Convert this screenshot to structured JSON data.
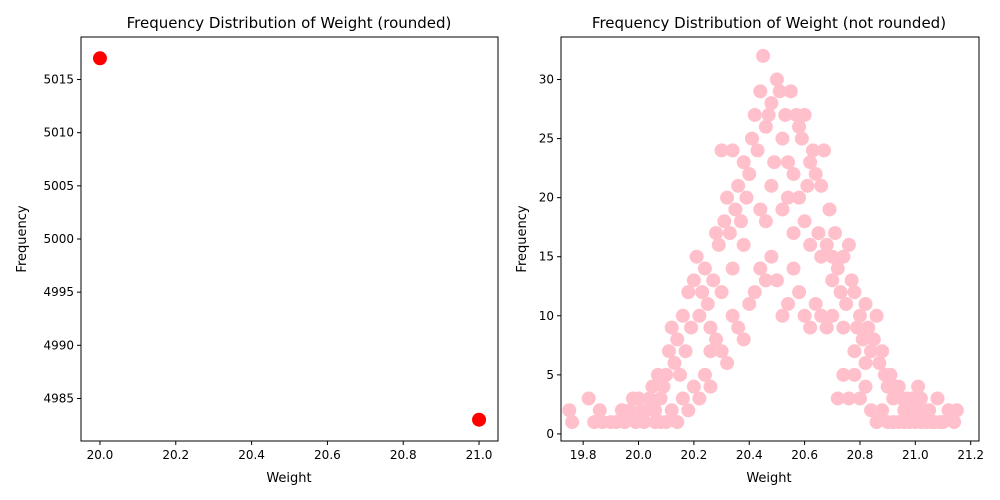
{
  "chart_data": [
    {
      "type": "scatter",
      "title": "Frequency Distribution of Weight (rounded)",
      "xlabel": "Weight",
      "ylabel": "Frequency",
      "xlim": [
        19.95,
        21.05
      ],
      "ylim": [
        4981,
        5019
      ],
      "xticks": [
        20.0,
        20.2,
        20.4,
        20.6,
        20.8,
        21.0
      ],
      "xtick_labels": [
        "20.0",
        "20.2",
        "20.4",
        "20.6",
        "20.8",
        "21.0"
      ],
      "yticks": [
        4985,
        4990,
        4995,
        5000,
        5005,
        5010,
        5015
      ],
      "ytick_labels": [
        "4985",
        "4990",
        "4995",
        "5000",
        "5005",
        "5010",
        "5015"
      ],
      "grid": false,
      "color": "#ff0000",
      "points": [
        {
          "x": 20.0,
          "y": 5017
        },
        {
          "x": 21.0,
          "y": 4983
        }
      ]
    },
    {
      "type": "scatter",
      "title": "Frequency Distribution of Weight (not rounded)",
      "xlabel": "Weight",
      "ylabel": "Frequency",
      "xlim": [
        19.72,
        21.23
      ],
      "ylim": [
        -0.6,
        33.6
      ],
      "xticks": [
        19.8,
        20.0,
        20.2,
        20.4,
        20.6,
        20.8,
        21.0,
        21.2
      ],
      "xtick_labels": [
        "19.8",
        "20.0",
        "20.2",
        "20.4",
        "20.6",
        "20.8",
        "21.0",
        "21.2"
      ],
      "yticks": [
        0,
        5,
        10,
        15,
        20,
        25,
        30
      ],
      "ytick_labels": [
        "0",
        "5",
        "10",
        "15",
        "20",
        "25",
        "30"
      ],
      "grid": false,
      "color": "#ffc0cb",
      "points": [
        {
          "x": 19.75,
          "y": 2
        },
        {
          "x": 19.76,
          "y": 1
        },
        {
          "x": 19.82,
          "y": 3
        },
        {
          "x": 19.84,
          "y": 1
        },
        {
          "x": 19.86,
          "y": 2
        },
        {
          "x": 19.87,
          "y": 1
        },
        {
          "x": 19.9,
          "y": 1
        },
        {
          "x": 19.92,
          "y": 1
        },
        {
          "x": 19.94,
          "y": 2
        },
        {
          "x": 19.95,
          "y": 1
        },
        {
          "x": 19.97,
          "y": 2
        },
        {
          "x": 19.98,
          "y": 3
        },
        {
          "x": 19.99,
          "y": 1
        },
        {
          "x": 20.0,
          "y": 3
        },
        {
          "x": 20.01,
          "y": 2
        },
        {
          "x": 20.02,
          "y": 1
        },
        {
          "x": 20.03,
          "y": 2
        },
        {
          "x": 20.04,
          "y": 3
        },
        {
          "x": 20.05,
          "y": 4
        },
        {
          "x": 20.06,
          "y": 2
        },
        {
          "x": 20.07,
          "y": 5
        },
        {
          "x": 20.08,
          "y": 3
        },
        {
          "x": 20.09,
          "y": 4
        },
        {
          "x": 20.1,
          "y": 5
        },
        {
          "x": 20.11,
          "y": 7
        },
        {
          "x": 20.12,
          "y": 9
        },
        {
          "x": 20.13,
          "y": 6
        },
        {
          "x": 20.14,
          "y": 8
        },
        {
          "x": 20.15,
          "y": 5
        },
        {
          "x": 20.16,
          "y": 10
        },
        {
          "x": 20.17,
          "y": 7
        },
        {
          "x": 20.18,
          "y": 12
        },
        {
          "x": 20.19,
          "y": 9
        },
        {
          "x": 20.2,
          "y": 13
        },
        {
          "x": 20.21,
          "y": 15
        },
        {
          "x": 20.22,
          "y": 10
        },
        {
          "x": 20.23,
          "y": 12
        },
        {
          "x": 20.24,
          "y": 14
        },
        {
          "x": 20.25,
          "y": 11
        },
        {
          "x": 20.26,
          "y": 9
        },
        {
          "x": 20.27,
          "y": 13
        },
        {
          "x": 20.28,
          "y": 17
        },
        {
          "x": 20.29,
          "y": 16
        },
        {
          "x": 20.3,
          "y": 24
        },
        {
          "x": 20.31,
          "y": 18
        },
        {
          "x": 20.32,
          "y": 20
        },
        {
          "x": 20.33,
          "y": 17
        },
        {
          "x": 20.34,
          "y": 24
        },
        {
          "x": 20.35,
          "y": 19
        },
        {
          "x": 20.36,
          "y": 21
        },
        {
          "x": 20.37,
          "y": 18
        },
        {
          "x": 20.38,
          "y": 23
        },
        {
          "x": 20.39,
          "y": 20
        },
        {
          "x": 20.4,
          "y": 22
        },
        {
          "x": 20.41,
          "y": 25
        },
        {
          "x": 20.42,
          "y": 27
        },
        {
          "x": 20.43,
          "y": 24
        },
        {
          "x": 20.44,
          "y": 29
        },
        {
          "x": 20.45,
          "y": 32
        },
        {
          "x": 20.46,
          "y": 26
        },
        {
          "x": 20.47,
          "y": 27
        },
        {
          "x": 20.48,
          "y": 28
        },
        {
          "x": 20.49,
          "y": 23
        },
        {
          "x": 20.5,
          "y": 30
        },
        {
          "x": 20.51,
          "y": 29
        },
        {
          "x": 20.52,
          "y": 25
        },
        {
          "x": 20.53,
          "y": 27
        },
        {
          "x": 20.54,
          "y": 23
        },
        {
          "x": 20.55,
          "y": 29
        },
        {
          "x": 20.56,
          "y": 22
        },
        {
          "x": 20.57,
          "y": 27
        },
        {
          "x": 20.58,
          "y": 26
        },
        {
          "x": 20.59,
          "y": 25
        },
        {
          "x": 20.6,
          "y": 27
        },
        {
          "x": 20.61,
          "y": 21
        },
        {
          "x": 20.62,
          "y": 23
        },
        {
          "x": 20.63,
          "y": 24
        },
        {
          "x": 20.64,
          "y": 22
        },
        {
          "x": 20.65,
          "y": 17
        },
        {
          "x": 20.66,
          "y": 21
        },
        {
          "x": 20.67,
          "y": 24
        },
        {
          "x": 20.68,
          "y": 16
        },
        {
          "x": 20.69,
          "y": 19
        },
        {
          "x": 20.7,
          "y": 15
        },
        {
          "x": 20.71,
          "y": 17
        },
        {
          "x": 20.72,
          "y": 14
        },
        {
          "x": 20.73,
          "y": 12
        },
        {
          "x": 20.74,
          "y": 15
        },
        {
          "x": 20.75,
          "y": 11
        },
        {
          "x": 20.76,
          "y": 16
        },
        {
          "x": 20.77,
          "y": 13
        },
        {
          "x": 20.78,
          "y": 12
        },
        {
          "x": 20.79,
          "y": 9
        },
        {
          "x": 20.8,
          "y": 10
        },
        {
          "x": 20.81,
          "y": 8
        },
        {
          "x": 20.82,
          "y": 11
        },
        {
          "x": 20.83,
          "y": 9
        },
        {
          "x": 20.84,
          "y": 7
        },
        {
          "x": 20.85,
          "y": 8
        },
        {
          "x": 20.86,
          "y": 10
        },
        {
          "x": 20.87,
          "y": 6
        },
        {
          "x": 20.88,
          "y": 7
        },
        {
          "x": 20.89,
          "y": 5
        },
        {
          "x": 20.9,
          "y": 4
        },
        {
          "x": 20.91,
          "y": 5
        },
        {
          "x": 20.92,
          "y": 3
        },
        {
          "x": 20.93,
          "y": 4
        },
        {
          "x": 20.94,
          "y": 4
        },
        {
          "x": 20.95,
          "y": 3
        },
        {
          "x": 20.96,
          "y": 2
        },
        {
          "x": 20.97,
          "y": 3
        },
        {
          "x": 20.98,
          "y": 2
        },
        {
          "x": 20.99,
          "y": 3
        },
        {
          "x": 21.0,
          "y": 2
        },
        {
          "x": 21.01,
          "y": 4
        },
        {
          "x": 21.02,
          "y": 3
        },
        {
          "x": 21.03,
          "y": 2
        },
        {
          "x": 21.04,
          "y": 1
        },
        {
          "x": 21.05,
          "y": 2
        },
        {
          "x": 21.06,
          "y": 1
        },
        {
          "x": 21.07,
          "y": 1
        },
        {
          "x": 21.08,
          "y": 3
        },
        {
          "x": 21.09,
          "y": 1
        },
        {
          "x": 21.1,
          "y": 1
        },
        {
          "x": 21.12,
          "y": 2
        },
        {
          "x": 21.14,
          "y": 1
        },
        {
          "x": 21.15,
          "y": 2
        },
        {
          "x": 20.14,
          "y": 1
        },
        {
          "x": 20.16,
          "y": 3
        },
        {
          "x": 20.18,
          "y": 2
        },
        {
          "x": 20.2,
          "y": 4
        },
        {
          "x": 20.22,
          "y": 3
        },
        {
          "x": 20.24,
          "y": 5
        },
        {
          "x": 20.26,
          "y": 4
        },
        {
          "x": 20.28,
          "y": 8
        },
        {
          "x": 20.3,
          "y": 7
        },
        {
          "x": 20.32,
          "y": 6
        },
        {
          "x": 20.34,
          "y": 10
        },
        {
          "x": 20.36,
          "y": 9
        },
        {
          "x": 20.38,
          "y": 8
        },
        {
          "x": 20.4,
          "y": 11
        },
        {
          "x": 20.42,
          "y": 12
        },
        {
          "x": 20.44,
          "y": 14
        },
        {
          "x": 20.46,
          "y": 13
        },
        {
          "x": 20.48,
          "y": 15
        },
        {
          "x": 20.5,
          "y": 13
        },
        {
          "x": 20.52,
          "y": 10
        },
        {
          "x": 20.54,
          "y": 11
        },
        {
          "x": 20.56,
          "y": 14
        },
        {
          "x": 20.58,
          "y": 12
        },
        {
          "x": 20.6,
          "y": 10
        },
        {
          "x": 20.62,
          "y": 9
        },
        {
          "x": 20.64,
          "y": 11
        },
        {
          "x": 20.66,
          "y": 10
        },
        {
          "x": 20.68,
          "y": 9
        },
        {
          "x": 20.7,
          "y": 10
        },
        {
          "x": 20.72,
          "y": 3
        },
        {
          "x": 20.74,
          "y": 5
        },
        {
          "x": 20.76,
          "y": 3
        },
        {
          "x": 20.78,
          "y": 5
        },
        {
          "x": 20.8,
          "y": 3
        },
        {
          "x": 20.82,
          "y": 4
        },
        {
          "x": 20.84,
          "y": 2
        },
        {
          "x": 20.86,
          "y": 1
        },
        {
          "x": 20.88,
          "y": 2
        },
        {
          "x": 20.9,
          "y": 1
        },
        {
          "x": 20.92,
          "y": 1
        },
        {
          "x": 20.94,
          "y": 1
        },
        {
          "x": 20.96,
          "y": 1
        },
        {
          "x": 20.98,
          "y": 1
        },
        {
          "x": 21.0,
          "y": 1
        },
        {
          "x": 21.02,
          "y": 1
        },
        {
          "x": 21.04,
          "y": 1
        },
        {
          "x": 20.12,
          "y": 2
        },
        {
          "x": 20.1,
          "y": 1
        },
        {
          "x": 20.08,
          "y": 1
        },
        {
          "x": 20.06,
          "y": 1
        },
        {
          "x": 20.46,
          "y": 18
        },
        {
          "x": 20.52,
          "y": 19
        },
        {
          "x": 20.56,
          "y": 17
        },
        {
          "x": 20.58,
          "y": 20
        },
        {
          "x": 20.6,
          "y": 18
        },
        {
          "x": 20.48,
          "y": 21
        },
        {
          "x": 20.54,
          "y": 20
        },
        {
          "x": 20.44,
          "y": 19
        },
        {
          "x": 20.62,
          "y": 16
        },
        {
          "x": 20.66,
          "y": 15
        },
        {
          "x": 20.38,
          "y": 16
        },
        {
          "x": 20.34,
          "y": 14
        },
        {
          "x": 20.3,
          "y": 12
        },
        {
          "x": 20.26,
          "y": 7
        },
        {
          "x": 20.7,
          "y": 13
        },
        {
          "x": 20.74,
          "y": 9
        },
        {
          "x": 20.78,
          "y": 7
        },
        {
          "x": 20.82,
          "y": 6
        }
      ]
    }
  ]
}
